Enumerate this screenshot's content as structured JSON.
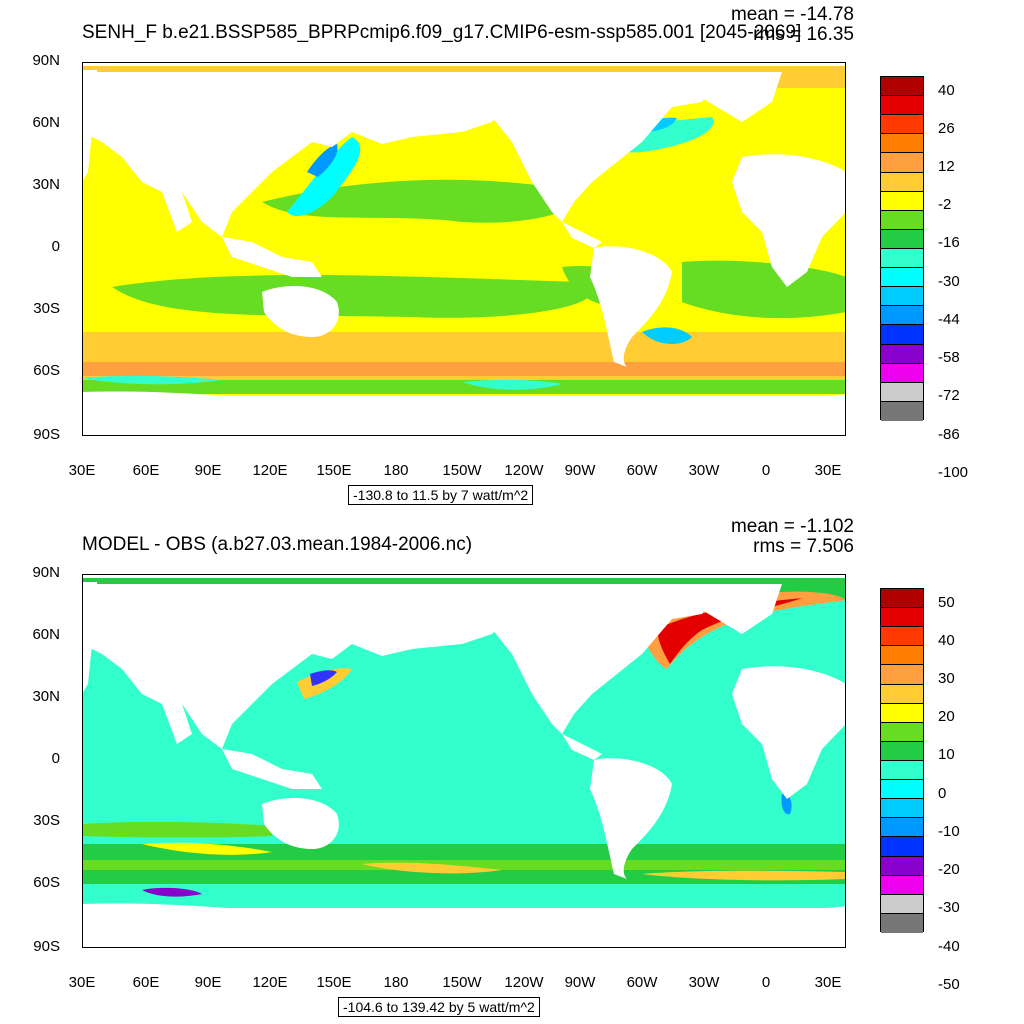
{
  "panels": [
    {
      "id": "top",
      "title": "SENH_F b.e21.BSSP585_BPRPcmip6.f09_g17.CMIP6-esm-ssp585.001 [2045-2069]",
      "mean": "mean = -14.78",
      "rms": "rms = 16.35",
      "contour_info": "-130.8 to 11.5 by 7 watt/m^2",
      "lat_labels": [
        "90N",
        "60N",
        "30N",
        "0",
        "30S",
        "60S",
        "90S"
      ],
      "lon_labels": [
        "30E",
        "60E",
        "90E",
        "120E",
        "150E",
        "180",
        "150W",
        "120W",
        "90W",
        "60W",
        "30W",
        "0",
        "30E"
      ],
      "legend_labels": [
        "40",
        "26",
        "12",
        "-2",
        "-16",
        "-30",
        "-44",
        "-58",
        "-72",
        "-86",
        "-100"
      ],
      "legend_colors": [
        "#b00000",
        "#e40000",
        "#ff3a00",
        "#ff7d00",
        "#ffa040",
        "#ffcc33",
        "#ffff00",
        "#66dd22",
        "#22cc44",
        "#33ffcc",
        "#00ffff",
        "#00ccff",
        "#0099ff",
        "#0033ff",
        "#8800cc",
        "#ee00ee",
        "#cccccc",
        "#777777"
      ]
    },
    {
      "id": "bottom",
      "title": "MODEL - OBS (a.b27.03.mean.1984-2006.nc)",
      "mean": "mean = -1.102",
      "rms": "rms = 7.506",
      "contour_info": "-104.6 to 139.42 by 5 watt/m^2",
      "lat_labels": [
        "90N",
        "60N",
        "30N",
        "0",
        "30S",
        "60S",
        "90S"
      ],
      "lon_labels": [
        "30E",
        "60E",
        "90E",
        "120E",
        "150E",
        "180",
        "150W",
        "120W",
        "90W",
        "60W",
        "30W",
        "0",
        "30E"
      ],
      "legend_labels": [
        "50",
        "40",
        "30",
        "20",
        "10",
        "0",
        "-10",
        "-20",
        "-30",
        "-40",
        "-50"
      ],
      "legend_colors": [
        "#b00000",
        "#e40000",
        "#ff3a00",
        "#ff7d00",
        "#ffa040",
        "#ffcc33",
        "#ffff00",
        "#66dd22",
        "#22cc44",
        "#33ffcc",
        "#00ffff",
        "#00ccff",
        "#0099ff",
        "#0033ff",
        "#8800cc",
        "#ee00ee",
        "#cccccc",
        "#777777"
      ]
    }
  ]
}
